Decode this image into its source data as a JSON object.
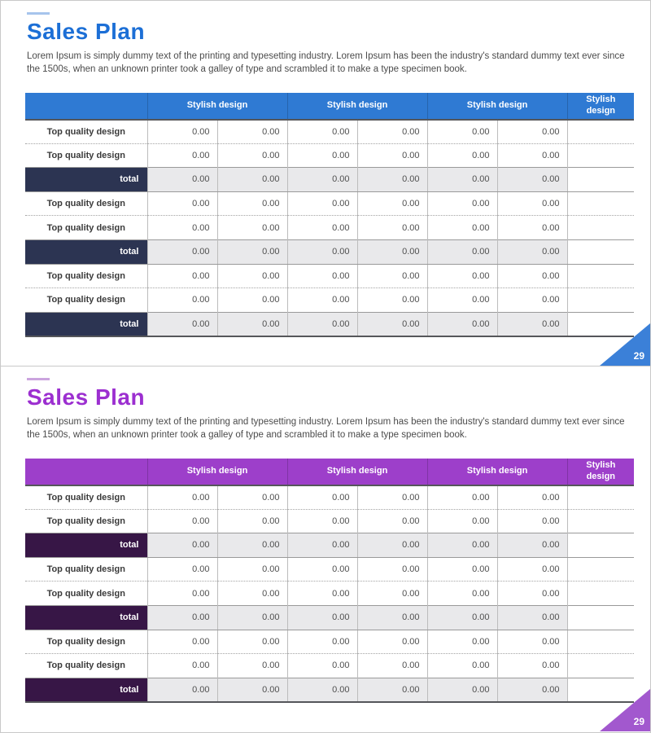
{
  "slides": [
    {
      "name": "sales-plan-slide-blue",
      "title": "Sales Plan",
      "description": "Lorem Ipsum is simply dummy text of the printing and typesetting industry. Lorem Ipsum has been the industry's standard dummy text ever since the 1500s, when an unknown printer took a galley of type and scrambled it to make a type specimen book.",
      "page_number": "29",
      "theme": {
        "title_color": "#1c6fd6",
        "accent_line": "#a6c4ec",
        "header_bg": "#2f7ad3",
        "total_bg": "#2c3452",
        "triangle": "#3b80d8"
      },
      "table": {
        "group_headers": [
          {
            "label": "Stylish design",
            "span": 2
          },
          {
            "label": "Stylish design",
            "span": 2
          },
          {
            "label": "Stylish design",
            "span": 2
          },
          {
            "label": "Stylish design",
            "span": 1
          }
        ],
        "rows": [
          {
            "type": "item",
            "label": "Top quality design",
            "values": [
              "0.00",
              "0.00",
              "0.00",
              "0.00",
              "0.00",
              "0.00"
            ]
          },
          {
            "type": "item",
            "label": "Top quality design",
            "values": [
              "0.00",
              "0.00",
              "0.00",
              "0.00",
              "0.00",
              "0.00"
            ]
          },
          {
            "type": "total",
            "label": "total",
            "values": [
              "0.00",
              "0.00",
              "0.00",
              "0.00",
              "0.00",
              "0.00"
            ]
          },
          {
            "type": "item",
            "label": "Top quality design",
            "values": [
              "0.00",
              "0.00",
              "0.00",
              "0.00",
              "0.00",
              "0.00"
            ]
          },
          {
            "type": "item",
            "label": "Top quality design",
            "values": [
              "0.00",
              "0.00",
              "0.00",
              "0.00",
              "0.00",
              "0.00"
            ]
          },
          {
            "type": "total",
            "label": "total",
            "values": [
              "0.00",
              "0.00",
              "0.00",
              "0.00",
              "0.00",
              "0.00"
            ]
          },
          {
            "type": "item",
            "label": "Top quality design",
            "values": [
              "0.00",
              "0.00",
              "0.00",
              "0.00",
              "0.00",
              "0.00"
            ]
          },
          {
            "type": "item",
            "label": "Top quality design",
            "values": [
              "0.00",
              "0.00",
              "0.00",
              "0.00",
              "0.00",
              "0.00"
            ]
          },
          {
            "type": "total",
            "label": "total",
            "values": [
              "0.00",
              "0.00",
              "0.00",
              "0.00",
              "0.00",
              "0.00"
            ]
          }
        ]
      }
    },
    {
      "name": "sales-plan-slide-purple",
      "title": "Sales Plan",
      "description": "Lorem Ipsum is simply dummy text of the printing and typesetting industry. Lorem Ipsum has been the industry's standard dummy text ever since the 1500s, when an unknown printer took a galley of type and scrambled it to make a type specimen book.",
      "page_number": "29",
      "theme": {
        "title_color": "#9c2fd0",
        "accent_line": "#cba4de",
        "header_bg": "#9d3fca",
        "total_bg": "#371646",
        "triangle": "#a258ce"
      },
      "table": {
        "group_headers": [
          {
            "label": "Stylish design",
            "span": 2
          },
          {
            "label": "Stylish design",
            "span": 2
          },
          {
            "label": "Stylish design",
            "span": 2
          },
          {
            "label": "Stylish design",
            "span": 1
          }
        ],
        "rows": [
          {
            "type": "item",
            "label": "Top quality design",
            "values": [
              "0.00",
              "0.00",
              "0.00",
              "0.00",
              "0.00",
              "0.00"
            ]
          },
          {
            "type": "item",
            "label": "Top quality design",
            "values": [
              "0.00",
              "0.00",
              "0.00",
              "0.00",
              "0.00",
              "0.00"
            ]
          },
          {
            "type": "total",
            "label": "total",
            "values": [
              "0.00",
              "0.00",
              "0.00",
              "0.00",
              "0.00",
              "0.00"
            ]
          },
          {
            "type": "item",
            "label": "Top quality design",
            "values": [
              "0.00",
              "0.00",
              "0.00",
              "0.00",
              "0.00",
              "0.00"
            ]
          },
          {
            "type": "item",
            "label": "Top quality design",
            "values": [
              "0.00",
              "0.00",
              "0.00",
              "0.00",
              "0.00",
              "0.00"
            ]
          },
          {
            "type": "total",
            "label": "total",
            "values": [
              "0.00",
              "0.00",
              "0.00",
              "0.00",
              "0.00",
              "0.00"
            ]
          },
          {
            "type": "item",
            "label": "Top quality design",
            "values": [
              "0.00",
              "0.00",
              "0.00",
              "0.00",
              "0.00",
              "0.00"
            ]
          },
          {
            "type": "item",
            "label": "Top quality design",
            "values": [
              "0.00",
              "0.00",
              "0.00",
              "0.00",
              "0.00",
              "0.00"
            ]
          },
          {
            "type": "total",
            "label": "total",
            "values": [
              "0.00",
              "0.00",
              "0.00",
              "0.00",
              "0.00",
              "0.00"
            ]
          }
        ]
      }
    }
  ]
}
